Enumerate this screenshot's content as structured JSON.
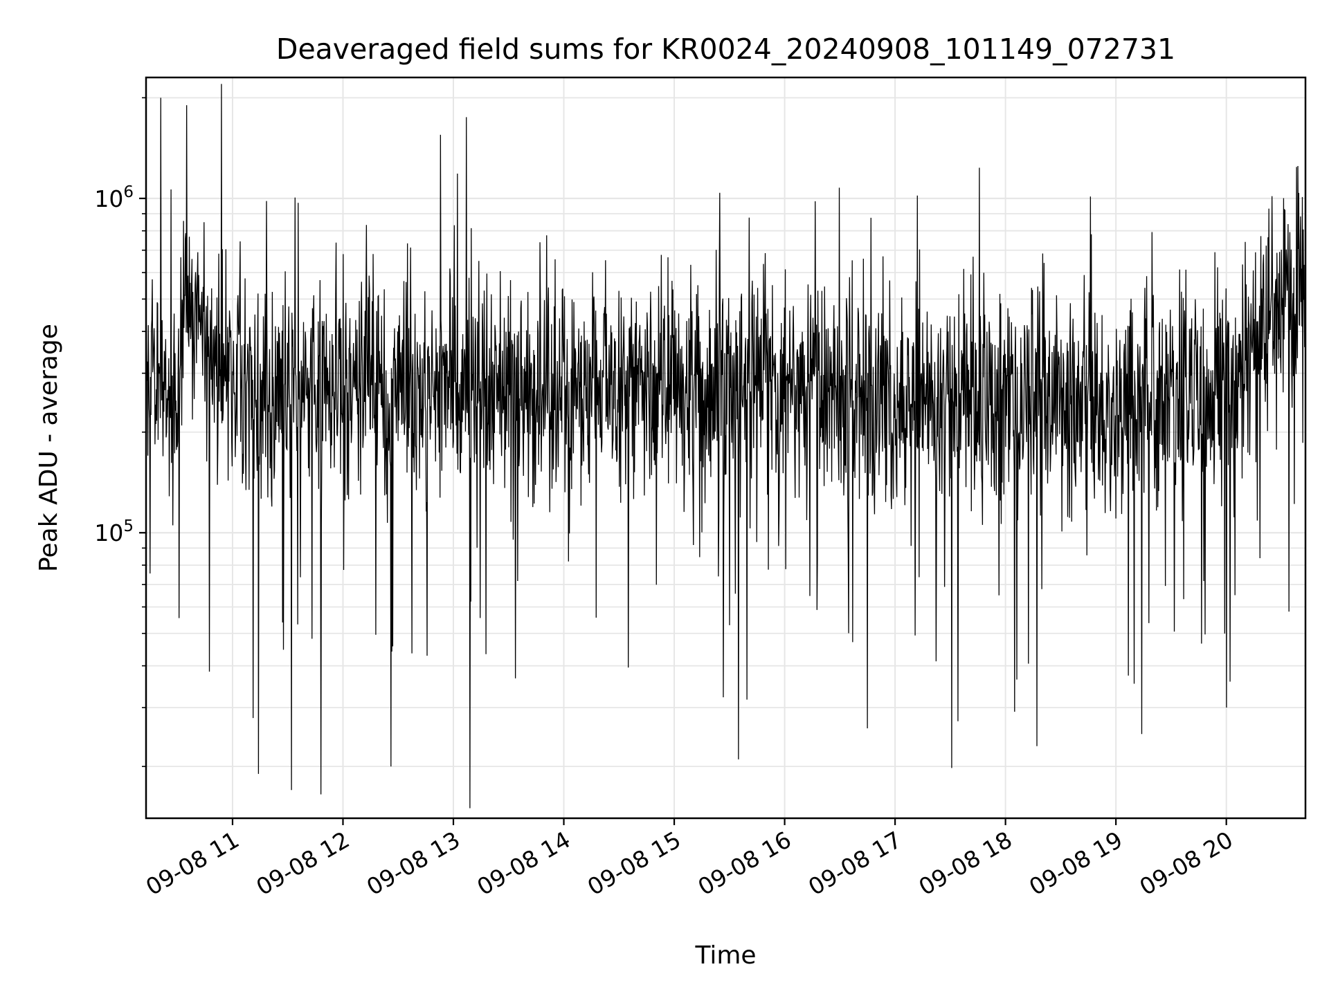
{
  "chart_data": {
    "type": "line",
    "title": "Deaveraged field sums for KR0024_20240908_101149_072731",
    "xlabel": "Time",
    "ylabel": "Peak ADU - average",
    "x_axis": {
      "kind": "datetime",
      "range": [
        "2024-09-08T10:13:00",
        "2024-09-08T20:43:00"
      ],
      "ticks": [
        {
          "value": "2024-09-08T11:00:00",
          "label": "09-08 11"
        },
        {
          "value": "2024-09-08T12:00:00",
          "label": "09-08 12"
        },
        {
          "value": "2024-09-08T13:00:00",
          "label": "09-08 13"
        },
        {
          "value": "2024-09-08T14:00:00",
          "label": "09-08 14"
        },
        {
          "value": "2024-09-08T15:00:00",
          "label": "09-08 15"
        },
        {
          "value": "2024-09-08T16:00:00",
          "label": "09-08 16"
        },
        {
          "value": "2024-09-08T17:00:00",
          "label": "09-08 17"
        },
        {
          "value": "2024-09-08T18:00:00",
          "label": "09-08 18"
        },
        {
          "value": "2024-09-08T19:00:00",
          "label": "09-08 19"
        },
        {
          "value": "2024-09-08T20:00:00",
          "label": "09-08 20"
        }
      ],
      "tick_label_rotation": 30
    },
    "y_axis": {
      "scale": "log",
      "range": [
        14000,
        2300000
      ],
      "major_ticks": [
        {
          "value": 100000,
          "base": "10",
          "exp": "5"
        },
        {
          "value": 1000000,
          "base": "10",
          "exp": "6"
        }
      ]
    },
    "grid": true,
    "legend": "none",
    "line_color": "#000000",
    "series": [
      {
        "level_profile": [
          {
            "t": "2024-09-08T10:13:00",
            "median": 280000
          },
          {
            "t": "2024-09-08T10:30:00",
            "median": 250000
          },
          {
            "t": "2024-09-08T10:35:00",
            "median": 550000
          },
          {
            "t": "2024-09-08T10:45:00",
            "median": 380000
          },
          {
            "t": "2024-09-08T11:00:00",
            "median": 270000
          },
          {
            "t": "2024-09-08T13:00:00",
            "median": 270000
          },
          {
            "t": "2024-09-08T16:00:00",
            "median": 270000
          },
          {
            "t": "2024-09-08T18:00:00",
            "median": 240000
          },
          {
            "t": "2024-09-08T20:05:00",
            "median": 250000
          },
          {
            "t": "2024-09-08T20:20:00",
            "median": 480000
          },
          {
            "t": "2024-09-08T20:43:00",
            "median": 500000
          }
        ],
        "notable_points": [
          {
            "t": "2024-09-08T10:21:00",
            "y": 2000000
          },
          {
            "t": "2024-09-08T10:35:00",
            "y": 1900000
          },
          {
            "t": "2024-09-08T10:54:00",
            "y": 2200000
          },
          {
            "t": "2024-09-08T12:53:00",
            "y": 1550000
          },
          {
            "t": "2024-09-08T13:07:00",
            "y": 1750000
          },
          {
            "t": "2024-09-08T13:09:00",
            "y": 15000
          },
          {
            "t": "2024-09-08T11:14:00",
            "y": 19000
          },
          {
            "t": "2024-09-08T11:32:00",
            "y": 17000
          },
          {
            "t": "2024-09-08T11:48:00",
            "y": 16500
          },
          {
            "t": "2024-09-08T12:26:00",
            "y": 20000
          },
          {
            "t": "2024-09-08T15:35:00",
            "y": 21000
          },
          {
            "t": "2024-09-08T16:45:00",
            "y": 26000
          },
          {
            "t": "2024-09-08T17:12:00",
            "y": 1020000
          },
          {
            "t": "2024-09-08T18:17:00",
            "y": 23000
          },
          {
            "t": "2024-09-08T19:14:00",
            "y": 25000
          },
          {
            "t": "2024-09-08T20:00:00",
            "y": 30000
          },
          {
            "t": "2024-09-08T20:39:00",
            "y": 1250000
          }
        ]
      }
    ]
  }
}
